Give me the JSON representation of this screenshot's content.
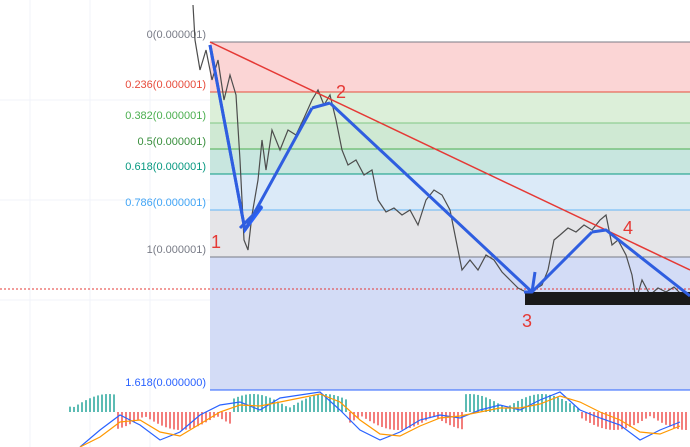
{
  "fib_levels": [
    {
      "label": "0(0.000001)"
    },
    {
      "label": "0.236(0.000001)"
    },
    {
      "label": "0.382(0.000001)"
    },
    {
      "label": "0.5(0.000001)"
    },
    {
      "label": "0.618(0.000001)"
    },
    {
      "label": "0.786(0.000001)"
    },
    {
      "label": "1(0.000001)"
    },
    {
      "label": "1.618(0.000000)"
    }
  ],
  "waves": [
    "1",
    "2",
    "3",
    "4"
  ]
}
